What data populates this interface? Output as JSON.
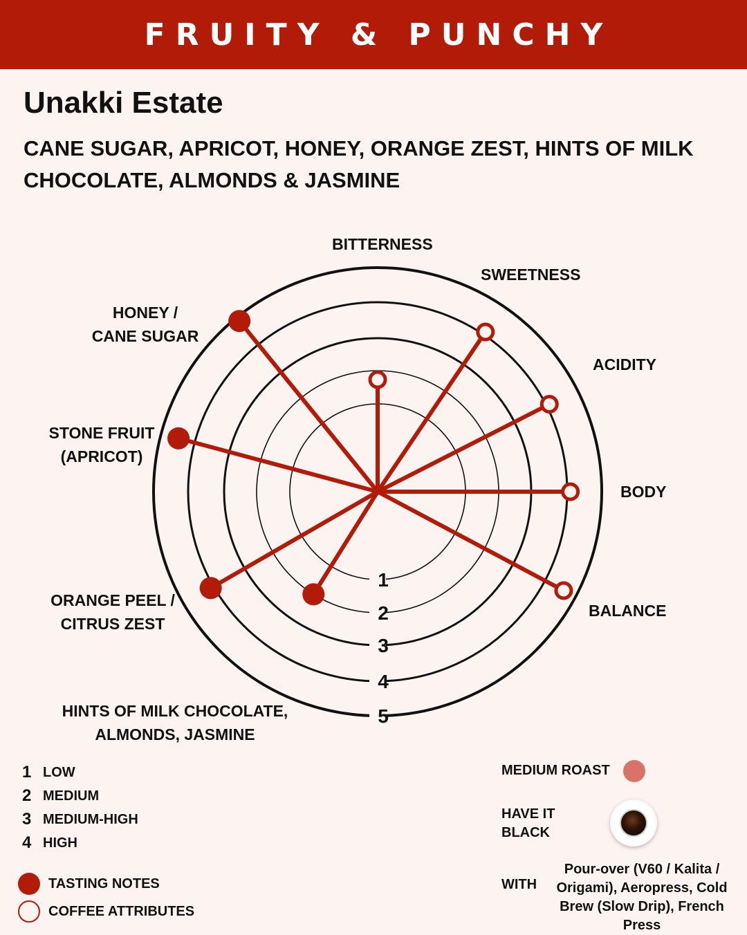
{
  "banner": {
    "title": "FRUITY & PUNCHY"
  },
  "estate": "Unakki Estate",
  "flavor_notes": "CANE SUGAR, APRICOT, HONEY, ORANGE ZEST, HINTS OF MILK CHOCOLATE, ALMONDS & JASMINE",
  "chart_data": {
    "type": "radar",
    "scale": [
      1,
      2,
      3,
      4,
      5
    ],
    "rmax": 5,
    "axes": [
      {
        "label": "BITTERNESS",
        "angle_deg": 0,
        "value": 2.5,
        "kind": "attribute"
      },
      {
        "label": "SWEETNESS",
        "angle_deg": 34,
        "value": 4.3,
        "kind": "attribute"
      },
      {
        "label": "ACIDITY",
        "angle_deg": 63,
        "value": 4.3,
        "kind": "attribute"
      },
      {
        "label": "BODY",
        "angle_deg": 90,
        "value": 4.3,
        "kind": "attribute"
      },
      {
        "label": "BALANCE",
        "angle_deg": 118,
        "value": 4.7,
        "kind": "attribute"
      },
      {
        "label": "HINTS OF MILK CHOCOLATE, ALMONDS, JASMINE",
        "angle_deg": 212,
        "value": 2.7,
        "kind": "tasting"
      },
      {
        "label": "ORANGE PEEL / CITRUS ZEST",
        "angle_deg": 240,
        "value": 4.3,
        "kind": "tasting"
      },
      {
        "label": "STONE FRUIT (APRICOT)",
        "angle_deg": 285,
        "value": 4.6,
        "kind": "tasting"
      },
      {
        "label": "HONEY / CANE SUGAR",
        "angle_deg": 321,
        "value": 4.9,
        "kind": "tasting"
      }
    ],
    "colors": {
      "line": "#b31b09",
      "ring": "#111111"
    }
  },
  "axis_labels": {
    "bitterness": "BITTERNESS",
    "sweetness": "SWEETNESS",
    "acidity": "ACIDITY",
    "body": "BODY",
    "balance": "BALANCE",
    "honey_1": "HONEY /",
    "honey_2": "CANE SUGAR",
    "stone_1": "STONE FRUIT",
    "stone_2": "(APRICOT)",
    "orange_1": "ORANGE PEEL /",
    "orange_2": "CITRUS ZEST",
    "choc_1": "HINTS OF MILK CHOCOLATE,",
    "choc_2": "ALMONDS, JASMINE"
  },
  "scale_legend": [
    {
      "num": "1",
      "text": "LOW"
    },
    {
      "num": "2",
      "text": "MEDIUM"
    },
    {
      "num": "3",
      "text": "MEDIUM-HIGH"
    },
    {
      "num": "4",
      "text": "HIGH"
    }
  ],
  "mark_legend": {
    "tasting": "TASTING NOTES",
    "attributes": "COFFEE ATTRIBUTES"
  },
  "roast": {
    "label": "MEDIUM  ROAST",
    "color": "#d9736a"
  },
  "serve": {
    "line1": "HAVE IT",
    "line2": "BLACK"
  },
  "brew": {
    "label": "WITH",
    "methods": "Pour-over (V60 / Kalita / Origami), Aeropress, Cold Brew (Slow Drip), French Press"
  },
  "icons": {
    "roast": "roast-dot-icon",
    "cup": "black-coffee-cup-icon"
  }
}
